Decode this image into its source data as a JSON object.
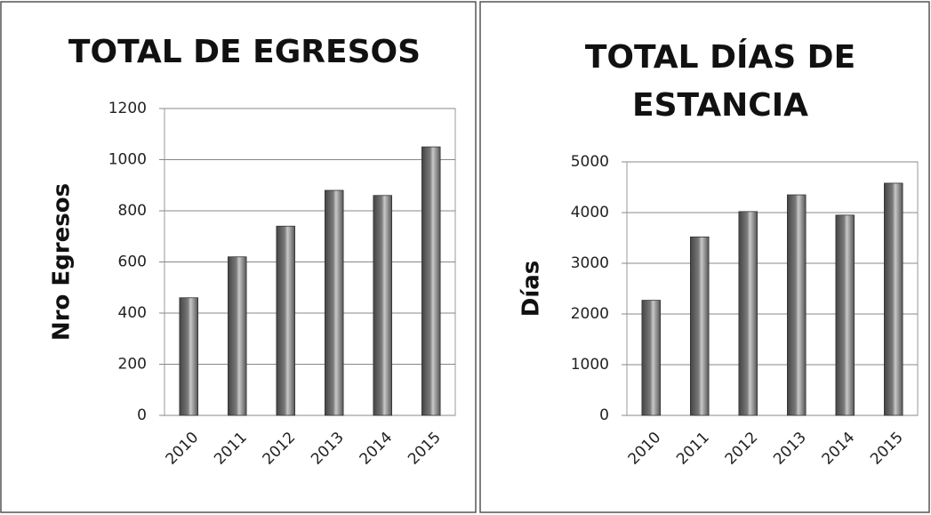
{
  "chart_data": [
    {
      "type": "bar",
      "title": "TOTAL DE EGRESOS",
      "y_label": "Nro Egresos",
      "categories": [
        "2010",
        "2011",
        "2012",
        "2013",
        "2014",
        "2015"
      ],
      "values": [
        460,
        620,
        740,
        880,
        860,
        1050
      ],
      "color": "#7a7a7a",
      "ylim": [
        0,
        1200
      ],
      "yticks": [
        0,
        200,
        400,
        600,
        800,
        1000,
        1200
      ],
      "grid": true
    },
    {
      "type": "bar",
      "title": "TOTAL DÍAS DE ESTANCIA",
      "y_label": "Días",
      "categories": [
        "2010",
        "2011",
        "2012",
        "2013",
        "2014",
        "2015"
      ],
      "values": [
        2270,
        3520,
        4020,
        4350,
        3950,
        4580
      ],
      "color": "#7a7a7a",
      "ylim": [
        0,
        5000
      ],
      "yticks": [
        0,
        1000,
        2000,
        3000,
        4000,
        5000
      ],
      "grid": true
    }
  ]
}
